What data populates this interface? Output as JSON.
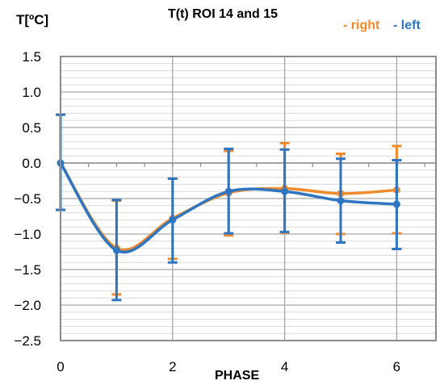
{
  "chart_data": {
    "type": "line",
    "title": "T(t)  ROI 14 and 15",
    "ylabel": "T[ºC]",
    "xlabel": "PHASE",
    "xlim": [
      0,
      6.7
    ],
    "ylim": [
      -2.5,
      1.5
    ],
    "x_ticks": [
      "0",
      "2",
      "4",
      "6"
    ],
    "x_tick_values": [
      0,
      2,
      4,
      6
    ],
    "y_ticks": [
      "1.5",
      "1.0",
      "0.5",
      "0.0",
      "−0.5",
      "−1.0",
      "−1.5",
      "−2.0",
      "−2.5"
    ],
    "y_tick_values": [
      1.5,
      1.0,
      0.5,
      0.0,
      -0.5,
      -1.0,
      -1.5,
      -2.0,
      -2.5
    ],
    "grid": true,
    "legend_position": "top-right",
    "x": [
      0,
      1,
      2,
      3,
      4,
      5,
      6
    ],
    "series": [
      {
        "name": "- right",
        "color": "#F08A2A",
        "values": [
          0.0,
          -1.2,
          -0.78,
          -0.42,
          -0.36,
          -0.43,
          -0.38
        ],
        "err_upper": [
          0.68,
          -0.53,
          -0.22,
          0.17,
          0.28,
          0.13,
          0.24
        ],
        "err_lower": [
          -0.66,
          -1.85,
          -1.35,
          -1.02,
          -0.98,
          -1.0,
          -0.99
        ]
      },
      {
        "name": "- left",
        "color": "#2E75C2",
        "values": [
          0.0,
          -1.23,
          -0.8,
          -0.4,
          -0.4,
          -0.53,
          -0.58
        ],
        "err_upper": [
          0.68,
          -0.52,
          -0.22,
          0.2,
          0.19,
          0.06,
          0.04
        ],
        "err_lower": [
          -0.66,
          -1.93,
          -1.4,
          -0.99,
          -0.97,
          -1.12,
          -1.21
        ]
      }
    ]
  }
}
